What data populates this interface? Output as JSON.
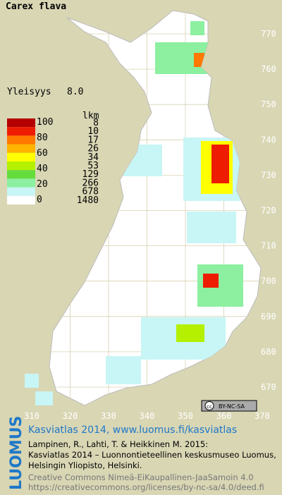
{
  "title": "Carex flava",
  "frequency": {
    "label": "Yleisyys",
    "value": "8.0"
  },
  "legend": {
    "scale": [
      100,
      80,
      60,
      40,
      20,
      0
    ],
    "count_header": "lkm",
    "classes": [
      {
        "color": "#b40000",
        "count": 8
      },
      {
        "color": "#ee1c00",
        "count": 10
      },
      {
        "color": "#ff7800",
        "count": 17
      },
      {
        "color": "#ffb400",
        "count": 26
      },
      {
        "color": "#ffff00",
        "count": 34
      },
      {
        "color": "#b4f000",
        "count": 53
      },
      {
        "color": "#64dc3c",
        "count": 129
      },
      {
        "color": "#8cf0a0",
        "count": 266
      },
      {
        "color": "#c8f5f5",
        "count": 678
      },
      {
        "color": "#ffffff",
        "count": 1480
      }
    ]
  },
  "grid": {
    "northing": [
      770,
      760,
      750,
      740,
      730,
      720,
      710,
      700,
      690,
      680,
      670
    ],
    "easting": [
      310,
      320,
      330,
      340,
      350,
      360,
      370
    ]
  },
  "license_badge": "BY-NC-SA",
  "footer": {
    "logo": "LUOMUS",
    "heading": "Kasviatlas 2014, www.luomus.fi/kasviatlas",
    "citation": [
      "Lampinen, R., Lahti, T. & Heikkinen M. 2015:",
      "Kasviatlas 2014 – Luonnontieteellinen keskusmuseo Luomus,",
      "Helsingin Yliopisto, Helsinki."
    ],
    "license": [
      "Creative Commons Nimeä-EiKaupallinen-JaaSamoin 4.0",
      "https://creativecommons.org/licenses/by-nc-sa/4.0/deed.fi"
    ]
  }
}
